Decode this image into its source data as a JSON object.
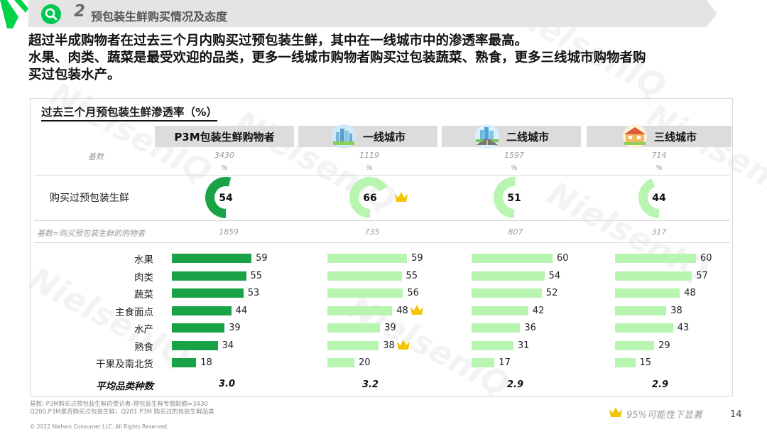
{
  "header": {
    "section_number": "2",
    "section_title": "预包装生鲜购买情况及态度"
  },
  "headline": {
    "line1": "超过半成购物者在过去三个月内购买过预包装生鲜，其中在一线城市中的渗透率最高。",
    "line2": "水果、肉类、蔬菜是最受欢迎的品类，更多一线城市购物者购买过包装蔬菜、熟食，更多三线城市购物者购",
    "line3": "买过包装水产。"
  },
  "chart": {
    "title": "过去三个月预包装生鲜渗透率（%）",
    "columns": [
      {
        "label": "P3M包装生鲜购物者",
        "icon": ""
      },
      {
        "label": "一线城市",
        "icon": "tier1-city-icon"
      },
      {
        "label": "二线城市",
        "icon": "tier2-city-icon"
      },
      {
        "label": "三线城市",
        "icon": "tier3-city-icon"
      }
    ],
    "base_label": "基数",
    "bases": [
      "3430",
      "1119",
      "1597",
      "714"
    ],
    "pct_label": "%",
    "penetration_label": "购买过预包装生鲜",
    "penetration": [
      54,
      66,
      51,
      44
    ],
    "base2_label": "基数=购买预包装生鲜的购物者",
    "bases2": [
      "1859",
      "735",
      "807",
      "317"
    ],
    "categories": [
      "水果",
      "肉类",
      "蔬菜",
      "主食面点",
      "水产",
      "熟食",
      "干果及南北货"
    ],
    "avg_label": "平均品类种数",
    "averages": [
      "3.0",
      "3.2",
      "2.9",
      "2.9"
    ]
  },
  "chart_data": {
    "type": "bar",
    "title": "过去三个月预包装生鲜渗透率（%）",
    "categories": [
      "水果",
      "肉类",
      "蔬菜",
      "主食面点",
      "水产",
      "熟食",
      "干果及南北货"
    ],
    "series": [
      {
        "name": "P3M包装生鲜购物者",
        "values": [
          59,
          55,
          53,
          44,
          39,
          34,
          18
        ]
      },
      {
        "name": "一线城市",
        "values": [
          59,
          55,
          56,
          48,
          39,
          38,
          20
        ]
      },
      {
        "name": "二线城市",
        "values": [
          60,
          54,
          52,
          42,
          36,
          31,
          17
        ]
      },
      {
        "name": "三线城市",
        "values": [
          60,
          57,
          48,
          38,
          43,
          29,
          15
        ]
      }
    ],
    "penetration": [
      54,
      66,
      51,
      44
    ],
    "significant": [
      {
        "column": "一线城市",
        "item": "购买过预包装生鲜"
      },
      {
        "column": "一线城市",
        "item": "主食面点"
      },
      {
        "column": "一线城市",
        "item": "熟食"
      }
    ],
    "colors": {
      "total": "#1aa346",
      "city": "#b8f5b0",
      "donut_track": "#ffffff",
      "crown": "#f2c500"
    }
  },
  "footer": {
    "note1": "基数: P3M购买过预包装生鲜的受访者-预包装生鲜专题配额=3430",
    "note2": "Q200.P3M是否购买过包装生鲜；Q201 P3M 购买过的包装生鲜品类",
    "copyright": "© 2022 Nielsen Consumer LLC. All Rights Reserved.",
    "legend": "95%可能性下显著",
    "page": "14"
  },
  "watermark": "NielsenIQ",
  "colors": {
    "brand_green": "#00c853",
    "dark_green": "#1aa346",
    "light_green": "#b8f5b0",
    "header_gray": "#dcdcdc"
  }
}
